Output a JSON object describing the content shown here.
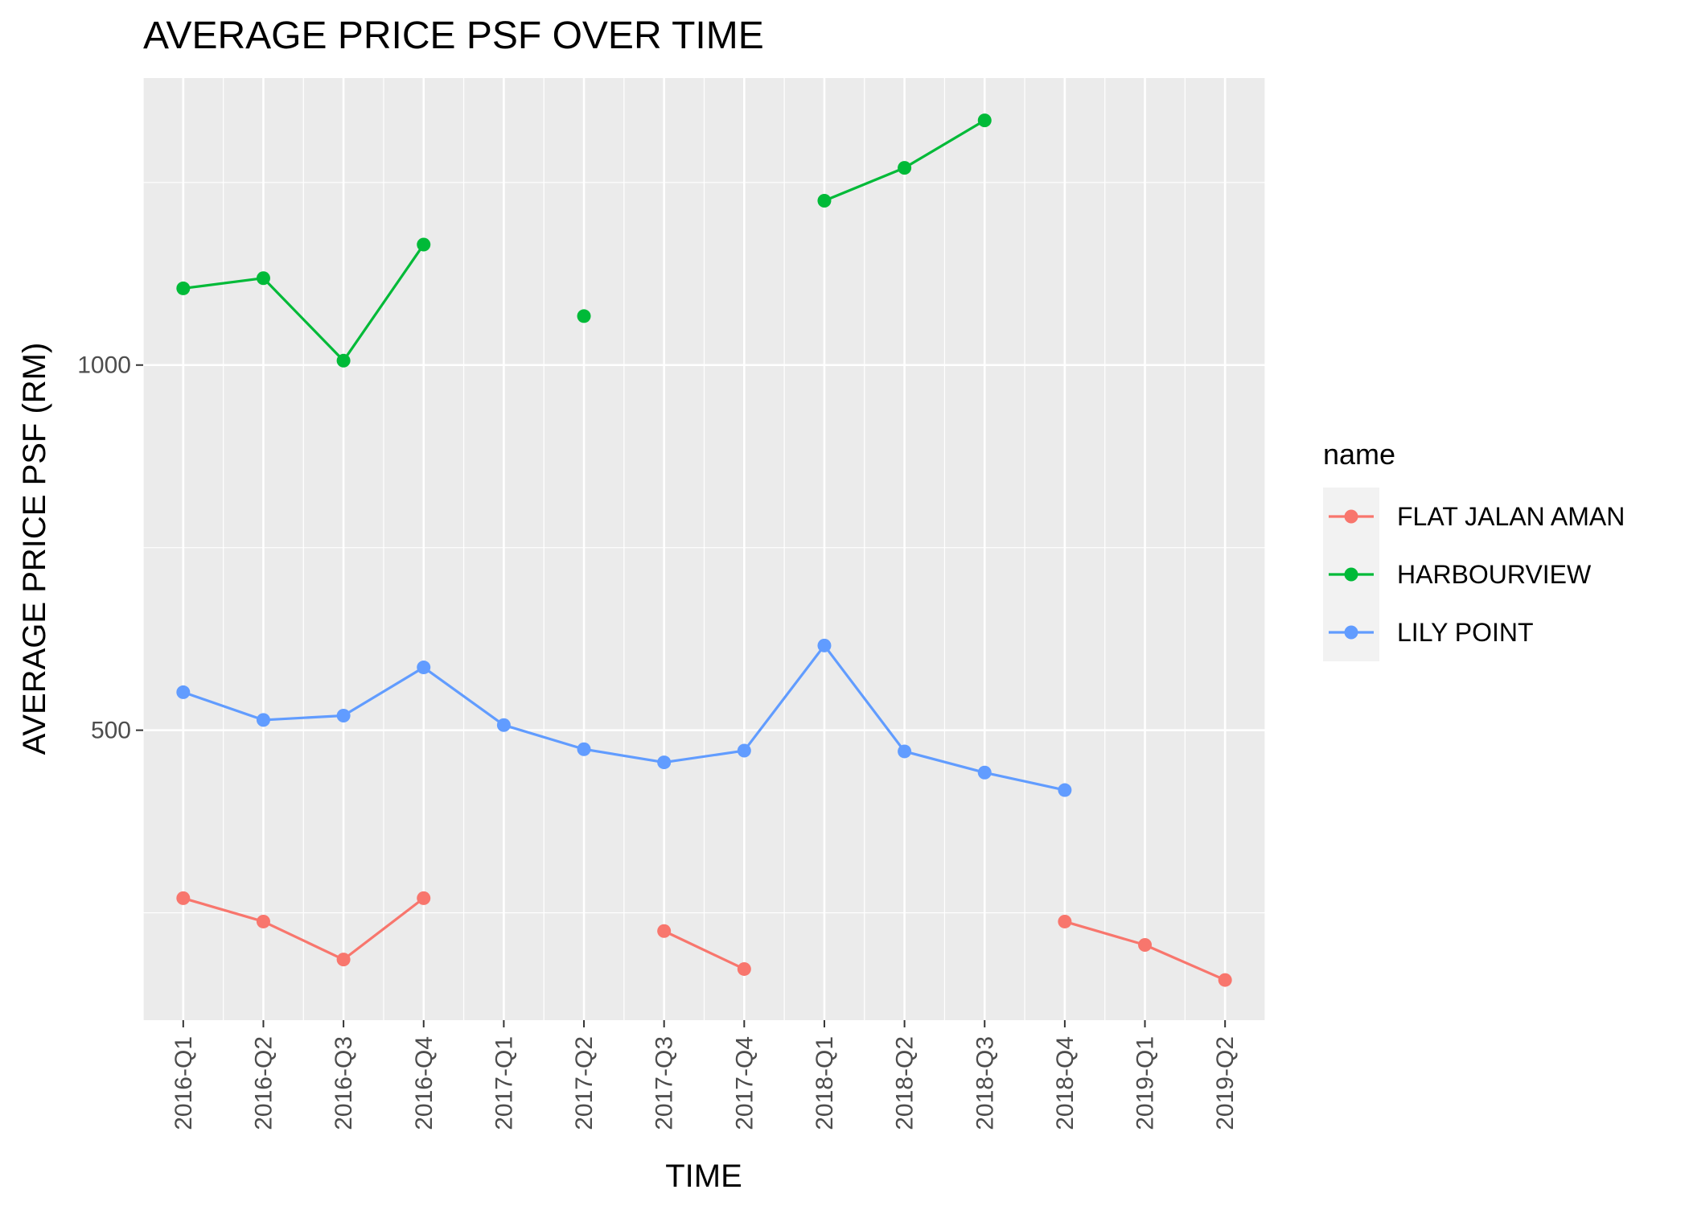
{
  "chart_data": {
    "type": "line",
    "title": "AVERAGE PRICE PSF OVER TIME",
    "xlabel": "TIME",
    "ylabel": "AVERAGE PRICE PSF (RM)",
    "categories": [
      "2016-Q1",
      "2016-Q2",
      "2016-Q3",
      "2016-Q4",
      "2017-Q1",
      "2017-Q2",
      "2017-Q3",
      "2017-Q4",
      "2018-Q1",
      "2018-Q2",
      "2018-Q3",
      "2018-Q4",
      "2019-Q1",
      "2019-Q2"
    ],
    "yticks": [
      500,
      1000
    ],
    "ytick_labels": [
      "500",
      "1000"
    ],
    "ylim": [
      103,
      1393
    ],
    "grid": true,
    "legend_title": "name",
    "legend_position": "right",
    "series": [
      {
        "name": "FLAT JALAN AMAN",
        "color": "#F8766D",
        "values": [
          270,
          238,
          186,
          270,
          null,
          null,
          225,
          173,
          null,
          null,
          null,
          238,
          206,
          158
        ]
      },
      {
        "name": "HARBOURVIEW",
        "color": "#00BA38",
        "values": [
          1105,
          1119,
          1006,
          1165,
          null,
          1067,
          null,
          null,
          1225,
          1270,
          1335,
          null,
          null,
          null
        ]
      },
      {
        "name": "LILY POINT",
        "color": "#619CFF",
        "values": [
          552,
          514,
          520,
          586,
          507,
          474,
          456,
          472,
          616,
          471,
          442,
          418,
          null,
          null
        ]
      }
    ]
  }
}
